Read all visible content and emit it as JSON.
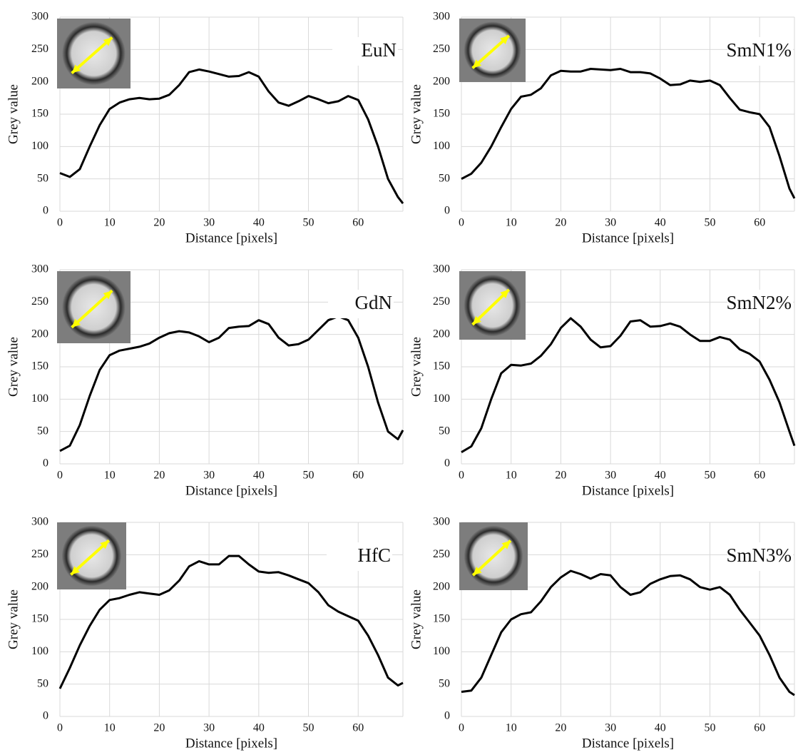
{
  "chart_data": [
    {
      "type": "line",
      "title": "EuN",
      "xlabel": "Distance [pixels]",
      "ylabel": "Grey value",
      "color": "#000000",
      "grid": true,
      "xlim": [
        0,
        69
      ],
      "ylim": [
        0,
        300
      ],
      "xticks": [
        0,
        10,
        20,
        30,
        40,
        50,
        60
      ],
      "yticks": [
        0,
        50,
        100,
        150,
        200,
        250,
        300
      ],
      "x": [
        0,
        2,
        4,
        6,
        8,
        10,
        12,
        14,
        16,
        18,
        20,
        22,
        24,
        26,
        28,
        30,
        32,
        34,
        36,
        38,
        40,
        42,
        44,
        46,
        48,
        50,
        52,
        54,
        56,
        58,
        60,
        62,
        64,
        66,
        68,
        69
      ],
      "values": [
        59,
        53,
        65,
        100,
        133,
        158,
        168,
        173,
        175,
        173,
        174,
        180,
        195,
        215,
        219,
        216,
        212,
        208,
        209,
        215,
        208,
        185,
        168,
        163,
        170,
        178,
        173,
        167,
        170,
        178,
        172,
        142,
        100,
        50,
        22,
        12
      ]
    },
    {
      "type": "line",
      "title": "SmN1%",
      "xlabel": "Distance [pixels]",
      "ylabel": "Grey value",
      "color": "#000000",
      "grid": true,
      "xlim": [
        0,
        67
      ],
      "ylim": [
        0,
        300
      ],
      "xticks": [
        0,
        10,
        20,
        30,
        40,
        50,
        60
      ],
      "yticks": [
        0,
        50,
        100,
        150,
        200,
        250,
        300
      ],
      "x": [
        0,
        2,
        4,
        6,
        8,
        10,
        12,
        14,
        16,
        18,
        20,
        22,
        24,
        26,
        28,
        30,
        32,
        34,
        36,
        38,
        40,
        42,
        44,
        46,
        48,
        50,
        52,
        54,
        56,
        58,
        60,
        62,
        64,
        66,
        67
      ],
      "values": [
        50,
        58,
        75,
        100,
        130,
        158,
        177,
        180,
        190,
        210,
        217,
        216,
        216,
        220,
        219,
        218,
        220,
        215,
        215,
        213,
        205,
        195,
        196,
        202,
        200,
        202,
        195,
        175,
        157,
        153,
        150,
        130,
        85,
        35,
        20
      ]
    },
    {
      "type": "line",
      "title": "GdN",
      "xlabel": "Distance [pixels]",
      "ylabel": "Grey value",
      "color": "#000000",
      "grid": true,
      "xlim": [
        0,
        69
      ],
      "ylim": [
        0,
        300
      ],
      "xticks": [
        0,
        10,
        20,
        30,
        40,
        50,
        60
      ],
      "yticks": [
        0,
        50,
        100,
        150,
        200,
        250,
        300
      ],
      "x": [
        0,
        2,
        4,
        6,
        8,
        10,
        12,
        14,
        16,
        18,
        20,
        22,
        24,
        26,
        28,
        30,
        32,
        34,
        36,
        38,
        40,
        42,
        44,
        46,
        48,
        50,
        52,
        54,
        56,
        58,
        60,
        62,
        64,
        66,
        68,
        69
      ],
      "values": [
        20,
        28,
        60,
        105,
        145,
        168,
        175,
        178,
        181,
        186,
        195,
        202,
        205,
        203,
        197,
        188,
        195,
        210,
        212,
        213,
        222,
        216,
        195,
        183,
        185,
        192,
        207,
        222,
        228,
        222,
        195,
        150,
        95,
        50,
        38,
        52
      ]
    },
    {
      "type": "line",
      "title": "SmN2%",
      "xlabel": "Distance [pixels]",
      "ylabel": "Grey value",
      "color": "#000000",
      "grid": true,
      "xlim": [
        0,
        67
      ],
      "ylim": [
        0,
        300
      ],
      "xticks": [
        0,
        10,
        20,
        30,
        40,
        50,
        60
      ],
      "yticks": [
        0,
        50,
        100,
        150,
        200,
        250,
        300
      ],
      "x": [
        0,
        2,
        4,
        6,
        8,
        10,
        12,
        14,
        16,
        18,
        20,
        22,
        24,
        26,
        28,
        30,
        32,
        34,
        36,
        38,
        40,
        42,
        44,
        46,
        48,
        50,
        52,
        54,
        56,
        58,
        60,
        62,
        64,
        66,
        67
      ],
      "values": [
        18,
        27,
        55,
        100,
        140,
        153,
        152,
        155,
        167,
        185,
        210,
        225,
        212,
        192,
        180,
        182,
        198,
        220,
        222,
        212,
        213,
        217,
        212,
        200,
        190,
        190,
        196,
        192,
        177,
        170,
        158,
        130,
        95,
        50,
        28
      ]
    },
    {
      "type": "line",
      "title": "HfC",
      "xlabel": "Distance [pixels]",
      "ylabel": "Grey value",
      "color": "#000000",
      "grid": true,
      "xlim": [
        0,
        69
      ],
      "ylim": [
        0,
        300
      ],
      "xticks": [
        0,
        10,
        20,
        30,
        40,
        50,
        60
      ],
      "yticks": [
        0,
        50,
        100,
        150,
        200,
        250,
        300
      ],
      "x": [
        0,
        2,
        4,
        6,
        8,
        10,
        12,
        14,
        16,
        18,
        20,
        22,
        24,
        26,
        28,
        30,
        32,
        34,
        36,
        38,
        40,
        42,
        44,
        46,
        48,
        50,
        52,
        54,
        56,
        58,
        60,
        62,
        64,
        66,
        68,
        69
      ],
      "values": [
        43,
        75,
        110,
        140,
        165,
        180,
        183,
        188,
        192,
        190,
        188,
        195,
        210,
        232,
        240,
        235,
        235,
        248,
        248,
        235,
        224,
        222,
        223,
        218,
        212,
        206,
        192,
        172,
        162,
        155,
        148,
        125,
        95,
        60,
        48,
        52
      ]
    },
    {
      "type": "line",
      "title": "SmN3%",
      "xlabel": "Distance [pixels]",
      "ylabel": "Grey value",
      "color": "#000000",
      "grid": true,
      "xlim": [
        0,
        67
      ],
      "ylim": [
        0,
        300
      ],
      "xticks": [
        0,
        10,
        20,
        30,
        40,
        50,
        60
      ],
      "yticks": [
        0,
        50,
        100,
        150,
        200,
        250,
        300
      ],
      "x": [
        0,
        2,
        4,
        6,
        8,
        10,
        12,
        14,
        16,
        18,
        20,
        22,
        24,
        26,
        28,
        30,
        32,
        34,
        36,
        38,
        40,
        42,
        44,
        46,
        48,
        50,
        52,
        54,
        56,
        58,
        60,
        62,
        64,
        66,
        67
      ],
      "values": [
        38,
        40,
        60,
        95,
        130,
        150,
        158,
        161,
        178,
        200,
        215,
        225,
        220,
        213,
        220,
        218,
        200,
        188,
        192,
        205,
        212,
        217,
        218,
        212,
        200,
        196,
        200,
        188,
        165,
        145,
        125,
        95,
        60,
        38,
        33
      ]
    }
  ]
}
